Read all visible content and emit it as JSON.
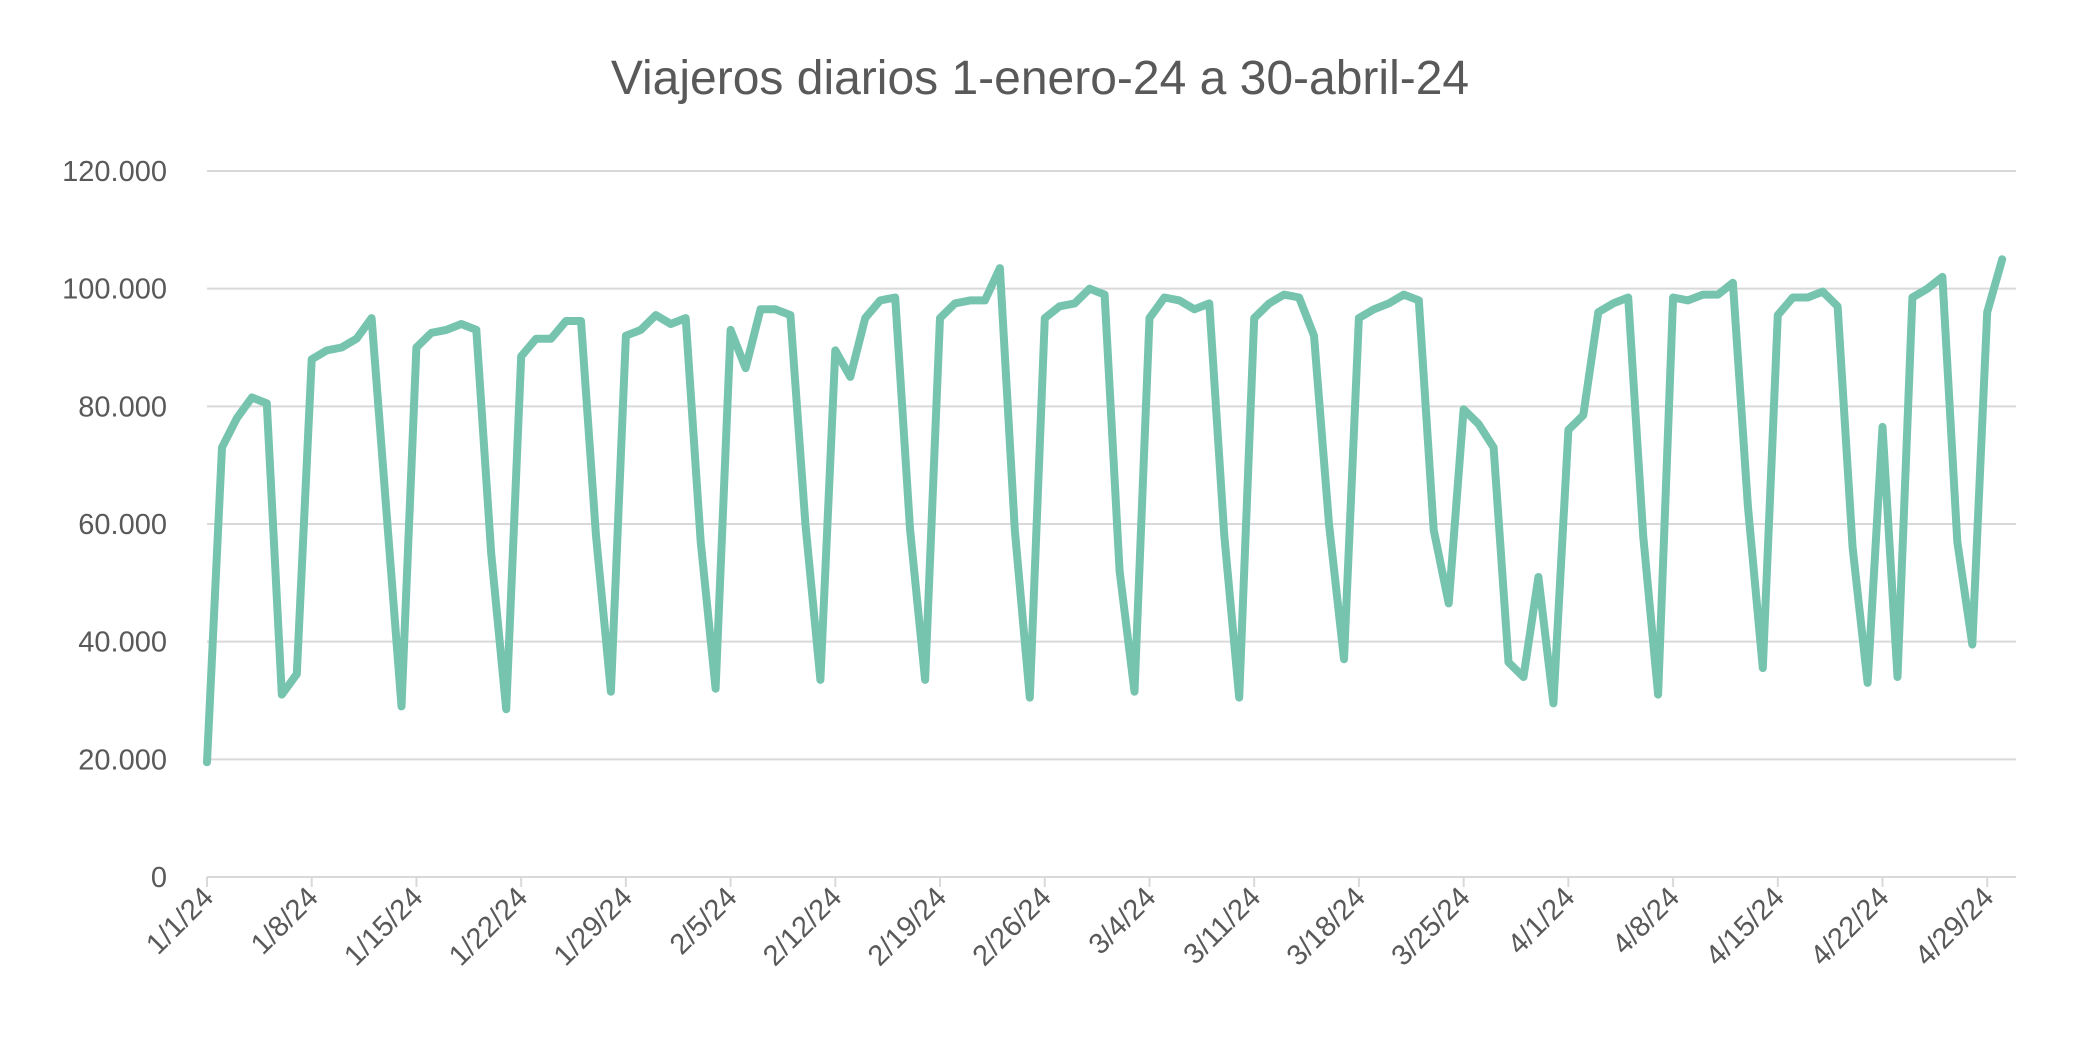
{
  "chart_data": {
    "type": "line",
    "title": "Viajeros diarios 1-enero-24 a 30-abril-24",
    "xlabel": "",
    "ylabel": "",
    "ylim": [
      0,
      120000
    ],
    "y_ticks": [
      0,
      20000,
      40000,
      60000,
      80000,
      100000,
      120000
    ],
    "y_tick_labels": [
      "0",
      "20.000",
      "40.000",
      "60.000",
      "80.000",
      "100.000",
      "120.000"
    ],
    "x_start": "2024-01-01",
    "x_end": "2024-04-30",
    "x_tick_labels": [
      "1/1/24",
      "1/8/24",
      "1/15/24",
      "1/22/24",
      "1/29/24",
      "2/5/24",
      "2/12/24",
      "2/19/24",
      "2/26/24",
      "3/4/24",
      "3/11/24",
      "3/18/24",
      "3/25/24",
      "4/1/24",
      "4/8/24",
      "4/15/24",
      "4/22/24",
      "4/29/24"
    ],
    "grid": true,
    "legend": "none",
    "line_color": "#76C4AE",
    "series": [
      {
        "values": [
          19500,
          73000,
          78000,
          81500,
          80500,
          31000,
          34500,
          88000,
          89500,
          90000,
          91500,
          95000,
          62000,
          29000,
          90000,
          92500,
          93000,
          94000,
          93000,
          55000,
          28500,
          88500,
          91500,
          91500,
          94500,
          94500,
          58000,
          31500,
          92000,
          93000,
          95500,
          94000,
          95000,
          57000,
          32000,
          93000,
          86500,
          96500,
          96500,
          95500,
          60000,
          33500,
          89500,
          85000,
          95000,
          98000,
          98500,
          59000,
          33500,
          95000,
          97500,
          98000,
          98000,
          103500,
          59000,
          30500,
          95000,
          97000,
          97500,
          100000,
          99000,
          52000,
          31500,
          95000,
          98500,
          98000,
          96500,
          97500,
          58000,
          30500,
          95000,
          97500,
          99000,
          98500,
          92000,
          60000,
          37000,
          95000,
          96500,
          97500,
          99000,
          98000,
          59000,
          46500,
          79500,
          77000,
          73000,
          36500,
          34000,
          51000,
          29500,
          76000,
          78500,
          96000,
          97500,
          98500,
          58000,
          31000,
          98500,
          98000,
          99000,
          99000,
          101000,
          63000,
          35500,
          95500,
          98500,
          98500,
          99500,
          97000,
          56000,
          33000,
          76500,
          34000,
          98500,
          100000,
          102000,
          57000,
          39500,
          96000,
          105000
        ]
      }
    ]
  }
}
